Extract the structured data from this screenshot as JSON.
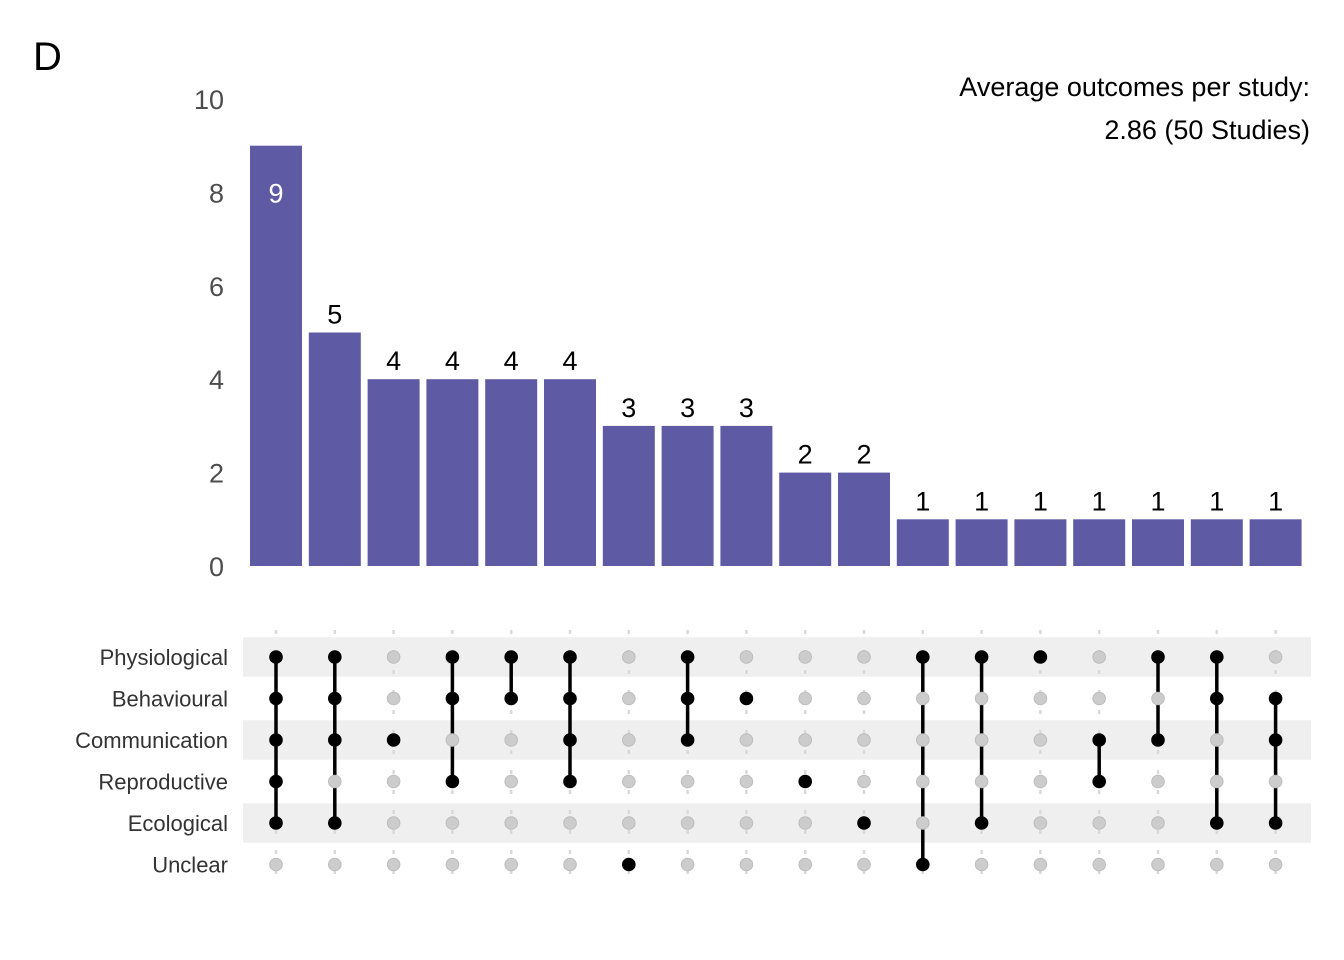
{
  "panel_label": "D",
  "annotation": {
    "line1": "Average outcomes per study:",
    "line2": "2.86 (50 Studies)"
  },
  "colors": {
    "bar": "#5e5ba4",
    "bar_label_inside": "#ffffff",
    "bar_label_outside": "#000000",
    "dot_active": "#000000",
    "dot_inactive": "#cccccc",
    "stripe": "#efefef"
  },
  "chart_data": {
    "type": "bar",
    "subtype": "upset",
    "yticks": [
      "0",
      "2",
      "4",
      "6",
      "8",
      "10"
    ],
    "ylim": [
      0,
      10
    ],
    "grid": false,
    "sets": [
      "Physiological",
      "Behavioural",
      "Communication",
      "Reproductive",
      "Ecological",
      "Unclear"
    ],
    "values": [
      9,
      5,
      4,
      4,
      4,
      4,
      3,
      3,
      3,
      2,
      2,
      1,
      1,
      1,
      1,
      1,
      1,
      1
    ],
    "value_labels": [
      "9",
      "5",
      "4",
      "4",
      "4",
      "4",
      "3",
      "3",
      "3",
      "2",
      "2",
      "1",
      "1",
      "1",
      "1",
      "1",
      "1",
      "1"
    ],
    "intersections": [
      [
        "Physiological",
        "Behavioural",
        "Communication",
        "Reproductive",
        "Ecological"
      ],
      [
        "Physiological",
        "Behavioural",
        "Communication",
        "Ecological"
      ],
      [
        "Communication"
      ],
      [
        "Physiological",
        "Behavioural",
        "Reproductive"
      ],
      [
        "Physiological",
        "Behavioural"
      ],
      [
        "Physiological",
        "Behavioural",
        "Communication",
        "Reproductive"
      ],
      [
        "Unclear"
      ],
      [
        "Physiological",
        "Behavioural",
        "Communication"
      ],
      [
        "Behavioural"
      ],
      [
        "Reproductive"
      ],
      [
        "Ecological"
      ],
      [
        "Physiological",
        "Unclear"
      ],
      [
        "Physiological",
        "Ecological"
      ],
      [
        "Physiological"
      ],
      [
        "Communication",
        "Reproductive"
      ],
      [
        "Physiological",
        "Communication"
      ],
      [
        "Physiological",
        "Behavioural",
        "Ecological"
      ],
      [
        "Behavioural",
        "Communication",
        "Ecological"
      ]
    ]
  }
}
